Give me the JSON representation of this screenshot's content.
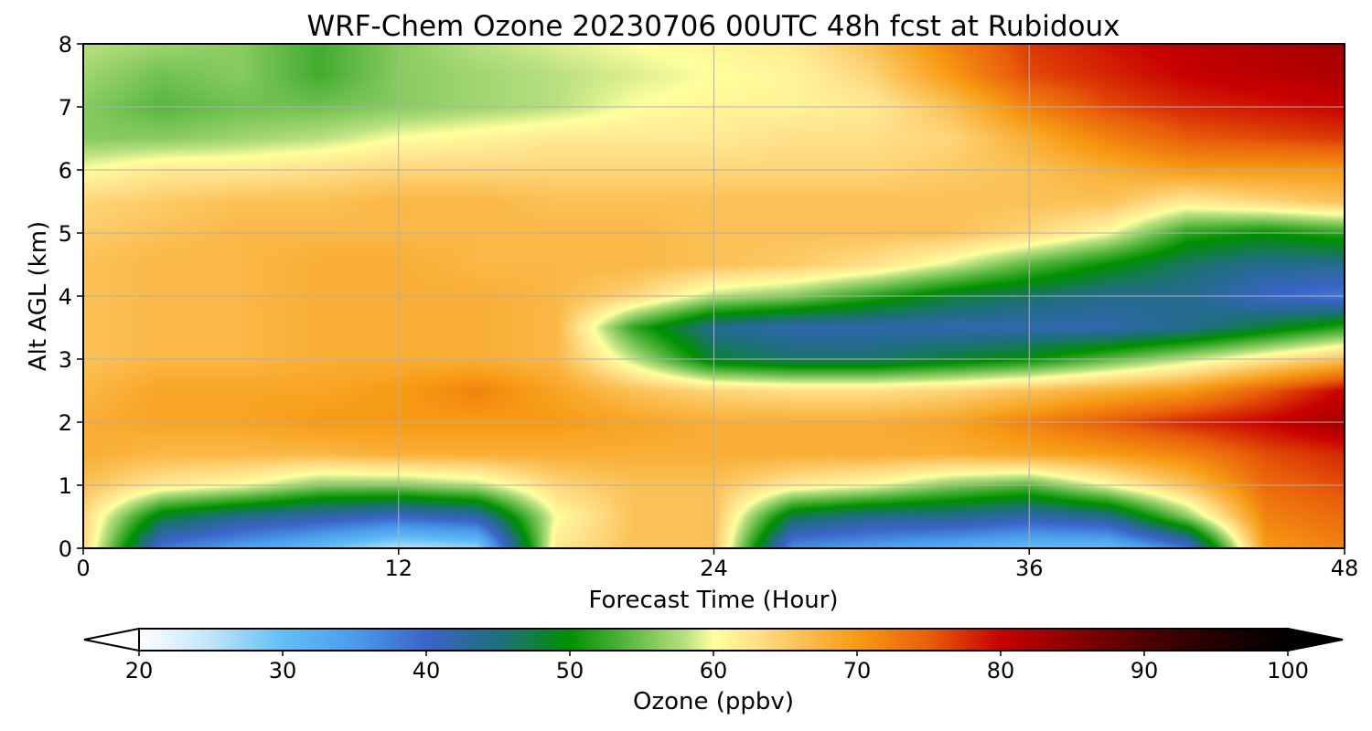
{
  "chart_data": {
    "type": "heatmap",
    "title": "WRF-Chem Ozone  20230706 00UTC 48h fcst at Rubidoux",
    "xlabel": "Forecast Time (Hour)",
    "ylabel": "Alt AGL (km)",
    "xlim": [
      0,
      48
    ],
    "ylim": [
      0,
      8
    ],
    "xticks": [
      0,
      12,
      24,
      36,
      48
    ],
    "yticks": [
      0,
      1,
      2,
      3,
      4,
      5,
      6,
      7,
      8
    ],
    "grid": true,
    "x_hours": [
      0,
      3,
      6,
      9,
      12,
      15,
      18,
      21,
      24,
      27,
      30,
      33,
      36,
      39,
      42,
      45,
      48
    ],
    "y_km": [
      0,
      0.5,
      1,
      1.5,
      2,
      2.5,
      3,
      3.5,
      4,
      4.5,
      5,
      5.5,
      6,
      6.5,
      7,
      7.5,
      8
    ],
    "ozone_ppbv": [
      [
        64,
        38,
        34,
        30,
        25,
        27,
        62,
        66,
        66,
        36,
        34,
        32,
        30,
        30,
        38,
        70,
        72
      ],
      [
        64,
        48,
        44,
        42,
        40,
        42,
        60,
        66,
        66,
        47,
        44,
        44,
        42,
        44,
        56,
        72,
        74
      ],
      [
        66,
        62,
        60,
        56,
        56,
        58,
        64,
        66,
        66,
        62,
        60,
        56,
        54,
        60,
        66,
        74,
        76
      ],
      [
        68,
        67,
        67,
        67,
        68,
        68,
        68,
        68,
        68,
        68,
        68,
        68,
        69,
        70,
        72,
        76,
        78
      ],
      [
        68,
        69,
        69,
        70,
        70,
        70,
        70,
        69,
        68,
        68,
        68,
        69,
        72,
        75,
        78,
        80,
        83
      ],
      [
        67,
        69,
        69,
        69,
        70,
        72,
        69,
        66,
        64,
        63,
        63,
        64,
        66,
        68,
        70,
        75,
        80
      ],
      [
        66,
        67,
        67,
        68,
        68,
        68,
        67,
        58,
        48,
        46,
        46,
        48,
        50,
        54,
        58,
        62,
        66
      ],
      [
        66,
        67,
        67,
        68,
        68,
        68,
        67,
        52,
        44,
        42,
        42,
        42,
        42,
        42,
        44,
        48,
        52
      ],
      [
        66,
        67,
        67,
        68,
        68,
        68,
        67,
        64,
        58,
        56,
        52,
        48,
        46,
        44,
        44,
        40,
        38
      ],
      [
        66,
        67,
        67,
        68,
        68,
        67,
        67,
        67,
        66,
        65,
        63,
        59,
        54,
        50,
        46,
        44,
        44
      ],
      [
        65,
        66,
        67,
        67,
        67,
        67,
        67,
        67,
        66,
        66,
        66,
        66,
        64,
        60,
        52,
        50,
        52
      ],
      [
        64,
        65,
        66,
        66,
        67,
        67,
        66,
        66,
        66,
        66,
        66,
        66,
        66,
        66,
        62,
        64,
        66
      ],
      [
        60,
        62,
        62,
        63,
        64,
        64,
        64,
        64,
        64,
        64,
        64,
        65,
        66,
        68,
        70,
        70,
        70
      ],
      [
        56,
        56,
        57,
        58,
        60,
        61,
        62,
        62,
        62,
        63,
        63,
        64,
        68,
        72,
        75,
        76,
        77
      ],
      [
        56,
        54,
        55,
        55,
        56,
        57,
        58,
        60,
        61,
        61,
        62,
        66,
        72,
        76,
        78,
        79,
        80
      ],
      [
        57,
        55,
        56,
        53,
        56,
        57,
        58,
        59,
        60,
        61,
        64,
        70,
        76,
        78,
        80,
        81,
        82
      ],
      [
        58,
        57,
        56,
        53,
        56,
        58,
        59,
        60,
        61,
        62,
        66,
        72,
        77,
        79,
        81,
        82,
        83
      ]
    ],
    "colorbar": {
      "label": "Ozone  (ppbv)",
      "min": 20,
      "max": 100,
      "ticks": [
        20,
        30,
        40,
        50,
        60,
        70,
        80,
        90,
        100
      ],
      "extend": "both",
      "color_stops": [
        {
          "v": 20,
          "c": "#ffffff"
        },
        {
          "v": 25,
          "c": "#bfe4fa"
        },
        {
          "v": 30,
          "c": "#62bff5"
        },
        {
          "v": 35,
          "c": "#4a9cec"
        },
        {
          "v": 40,
          "c": "#3b64c8"
        },
        {
          "v": 45,
          "c": "#1f6e80"
        },
        {
          "v": 50,
          "c": "#009000"
        },
        {
          "v": 54,
          "c": "#58b640"
        },
        {
          "v": 58,
          "c": "#b8e080"
        },
        {
          "v": 60,
          "c": "#ffff9e"
        },
        {
          "v": 63,
          "c": "#ffe08a"
        },
        {
          "v": 66,
          "c": "#fbc156"
        },
        {
          "v": 70,
          "c": "#f79b14"
        },
        {
          "v": 75,
          "c": "#e95e0a"
        },
        {
          "v": 80,
          "c": "#c80000"
        },
        {
          "v": 85,
          "c": "#8a0000"
        },
        {
          "v": 90,
          "c": "#500000"
        },
        {
          "v": 95,
          "c": "#220000"
        },
        {
          "v": 100,
          "c": "#000000"
        }
      ]
    }
  }
}
